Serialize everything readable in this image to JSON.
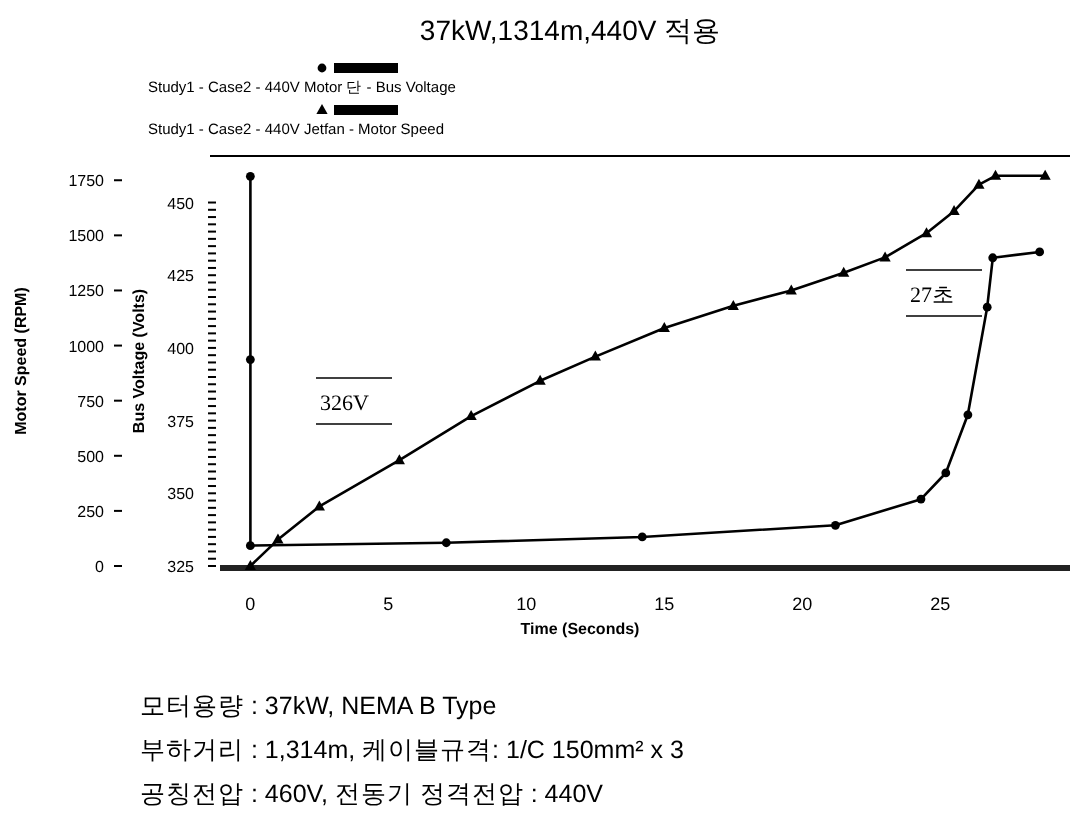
{
  "chart_data": {
    "type": "line",
    "title": "37kW,1314m,440V 적용",
    "xlabel": "Time (Seconds)",
    "ylabel": "Motor Speed (RPM)",
    "y2label": "Bus Voltage (Volts)",
    "xlim": [
      -1.1,
      29.7
    ],
    "xticks": [
      0,
      5,
      10,
      15,
      20,
      25
    ],
    "ylim": [
      0,
      1860
    ],
    "yticks": [
      0,
      250,
      500,
      750,
      1000,
      1250,
      1500,
      1750
    ],
    "y2lim": [
      325,
      466
    ],
    "y2ticks": [
      325,
      {
        "value": 327.5,
        "label": null
      },
      {
        "value": 330,
        "label": null
      },
      {
        "value": 332.5,
        "label": null
      },
      {
        "value": 335,
        "label": null
      },
      {
        "value": 337.5,
        "label": null
      },
      {
        "value": 340,
        "label": null
      },
      {
        "value": 342.5,
        "label": null
      },
      {
        "value": 345,
        "label": null
      },
      {
        "value": 347.5,
        "label": null
      },
      350,
      {
        "value": 352.5,
        "label": null
      },
      {
        "value": 355,
        "label": null
      },
      {
        "value": 357.5,
        "label": null
      },
      {
        "value": 360,
        "label": null
      },
      {
        "value": 362.5,
        "label": null
      },
      {
        "value": 365,
        "label": null
      },
      {
        "value": 367.5,
        "label": null
      },
      {
        "value": 370,
        "label": null
      },
      {
        "value": 372.5,
        "label": null
      },
      375,
      {
        "value": 377.5,
        "label": null
      },
      {
        "value": 380,
        "label": null
      },
      {
        "value": 382.5,
        "label": null
      },
      {
        "value": 385,
        "label": null
      },
      {
        "value": 387.5,
        "label": null
      },
      {
        "value": 390,
        "label": null
      },
      {
        "value": 392.5,
        "label": null
      },
      {
        "value": 395,
        "label": null
      },
      {
        "value": 397.5,
        "label": null
      },
      400,
      {
        "value": 402.5,
        "label": null
      },
      {
        "value": 405,
        "label": null
      },
      {
        "value": 407.5,
        "label": null
      },
      {
        "value": 410,
        "label": null
      },
      {
        "value": 412.5,
        "label": null
      },
      {
        "value": 415,
        "label": null
      },
      {
        "value": 417.5,
        "label": null
      },
      {
        "value": 420,
        "label": null
      },
      {
        "value": 422.5,
        "label": null
      },
      425,
      {
        "value": 427.5,
        "label": null
      },
      {
        "value": 430,
        "label": null
      },
      {
        "value": 432.5,
        "label": null
      },
      {
        "value": 435,
        "label": null
      },
      {
        "value": 437.5,
        "label": null
      },
      {
        "value": 440,
        "label": null
      },
      {
        "value": 442.5,
        "label": null
      },
      {
        "value": 445,
        "label": null
      },
      {
        "value": 447.5,
        "label": null
      },
      450
    ],
    "legend": "top left",
    "grid": false,
    "series": [
      {
        "name": "Study1 - Case2 - 440V Motor 단 - Bus Voltage",
        "color": "#000000",
        "axis": "y2",
        "marker": "circle",
        "x": [
          0,
          0,
          0,
          7.1,
          14.2,
          21.2,
          24.3,
          25.2,
          26.0,
          26.7,
          26.9,
          28.6
        ],
        "values": [
          459,
          396,
          332,
          333,
          335,
          339,
          348,
          357,
          377,
          414,
          431,
          433
        ]
      },
      {
        "name": "Study1 - Case2 - 440V Jetfan - Motor Speed",
        "color": "#000000",
        "axis": "y",
        "marker": "triangle",
        "x": [
          0,
          1,
          2.5,
          5.4,
          8,
          10.5,
          12.5,
          15,
          17.5,
          19.6,
          21.5,
          23,
          24.5,
          25.5,
          26.4,
          27,
          28.8
        ],
        "values": [
          0,
          120,
          270,
          480,
          680,
          840,
          950,
          1080,
          1180,
          1250,
          1330,
          1400,
          1510,
          1610,
          1730,
          1770,
          1770
        ]
      }
    ],
    "annotations": [
      "326V",
      "27초",
      "모터용량 : 37kW, NEMA B Type",
      "부하거리 : 1,314m, 케이블규격: 1/C 150mm² x 3",
      "공칭전압 : 460V, 전동기 정격전압 : 440V"
    ]
  }
}
